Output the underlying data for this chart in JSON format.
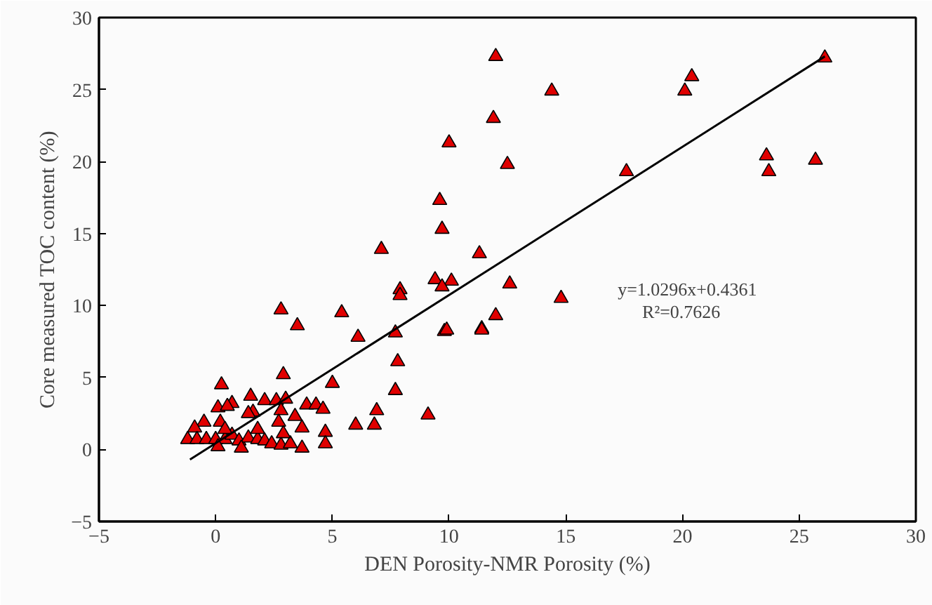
{
  "chart_data": {
    "type": "scatter",
    "xlabel": "DEN Porosity-NMR Porosity (%)",
    "ylabel": "Core measured TOC content (%)",
    "xlim": [
      -5,
      30
    ],
    "ylim": [
      -5,
      30
    ],
    "xticks": [
      {
        "value": -5,
        "label": "−5"
      },
      0,
      5,
      10,
      15,
      20,
      25,
      30
    ],
    "yticks": [
      {
        "value": -5,
        "label": "−5"
      },
      0,
      5,
      10,
      15,
      20,
      25,
      30
    ],
    "grid": false,
    "annotations": [
      "y=1.0296x+0.4361",
      "R²=0.7626"
    ],
    "series": [
      {
        "marker": "triangle",
        "color": "#e00000",
        "x": [
          12.0,
          14.4,
          11.9,
          20.4,
          20.1,
          12.5,
          17.6,
          23.6,
          23.7,
          11.3,
          12.6,
          14.8,
          12.0,
          11.4,
          26.1,
          25.7,
          10.0,
          9.6,
          9.7,
          7.1,
          9.4,
          10.1,
          9.7,
          7.9,
          7.9,
          2.8,
          3.5,
          5.4,
          6.1,
          7.7,
          9.8,
          9.9,
          11.4,
          7.8,
          2.9,
          5.0,
          0.25,
          6.9,
          6.0,
          6.8,
          7.7,
          9.1,
          1.5,
          2.1,
          2.6,
          3.0,
          0.7,
          0.1,
          0.5,
          3.9,
          4.3,
          4.6,
          2.8,
          3.4,
          1.6,
          1.4,
          -0.5,
          -0.9,
          0.2,
          2.7,
          3.7,
          4.7,
          -1.2,
          -0.8,
          -0.4,
          0.0,
          0.4,
          0.7,
          1.0,
          1.4,
          1.8,
          2.1,
          2.4,
          2.8,
          3.2,
          3.7,
          4.7,
          0.1,
          1.1,
          2.9,
          0.4,
          1.8
        ],
        "values": [
          27.3,
          24.9,
          23.0,
          25.9,
          24.9,
          19.8,
          19.3,
          20.4,
          19.3,
          13.6,
          11.5,
          10.5,
          9.3,
          8.4,
          27.2,
          20.1,
          21.3,
          17.3,
          15.3,
          13.9,
          11.8,
          11.7,
          11.3,
          11.1,
          10.7,
          9.7,
          8.6,
          9.5,
          7.8,
          8.1,
          8.2,
          8.3,
          8.3,
          6.1,
          5.2,
          4.6,
          4.5,
          2.7,
          1.7,
          1.7,
          4.1,
          2.4,
          3.7,
          3.4,
          3.4,
          3.5,
          3.2,
          2.9,
          3.0,
          3.1,
          3.1,
          2.8,
          2.7,
          2.3,
          2.6,
          2.5,
          1.9,
          1.5,
          1.9,
          1.9,
          1.5,
          1.2,
          0.7,
          0.7,
          0.7,
          0.7,
          0.7,
          1.0,
          0.6,
          0.8,
          0.7,
          0.6,
          0.4,
          0.3,
          0.4,
          0.1,
          0.4,
          0.2,
          0.1,
          1.1,
          1.4,
          1.4
        ]
      },
      {
        "type": "line",
        "color": "#000000",
        "x": [
          -1.1,
          26.1
        ],
        "values": [
          -0.7,
          27.3
        ]
      }
    ]
  }
}
